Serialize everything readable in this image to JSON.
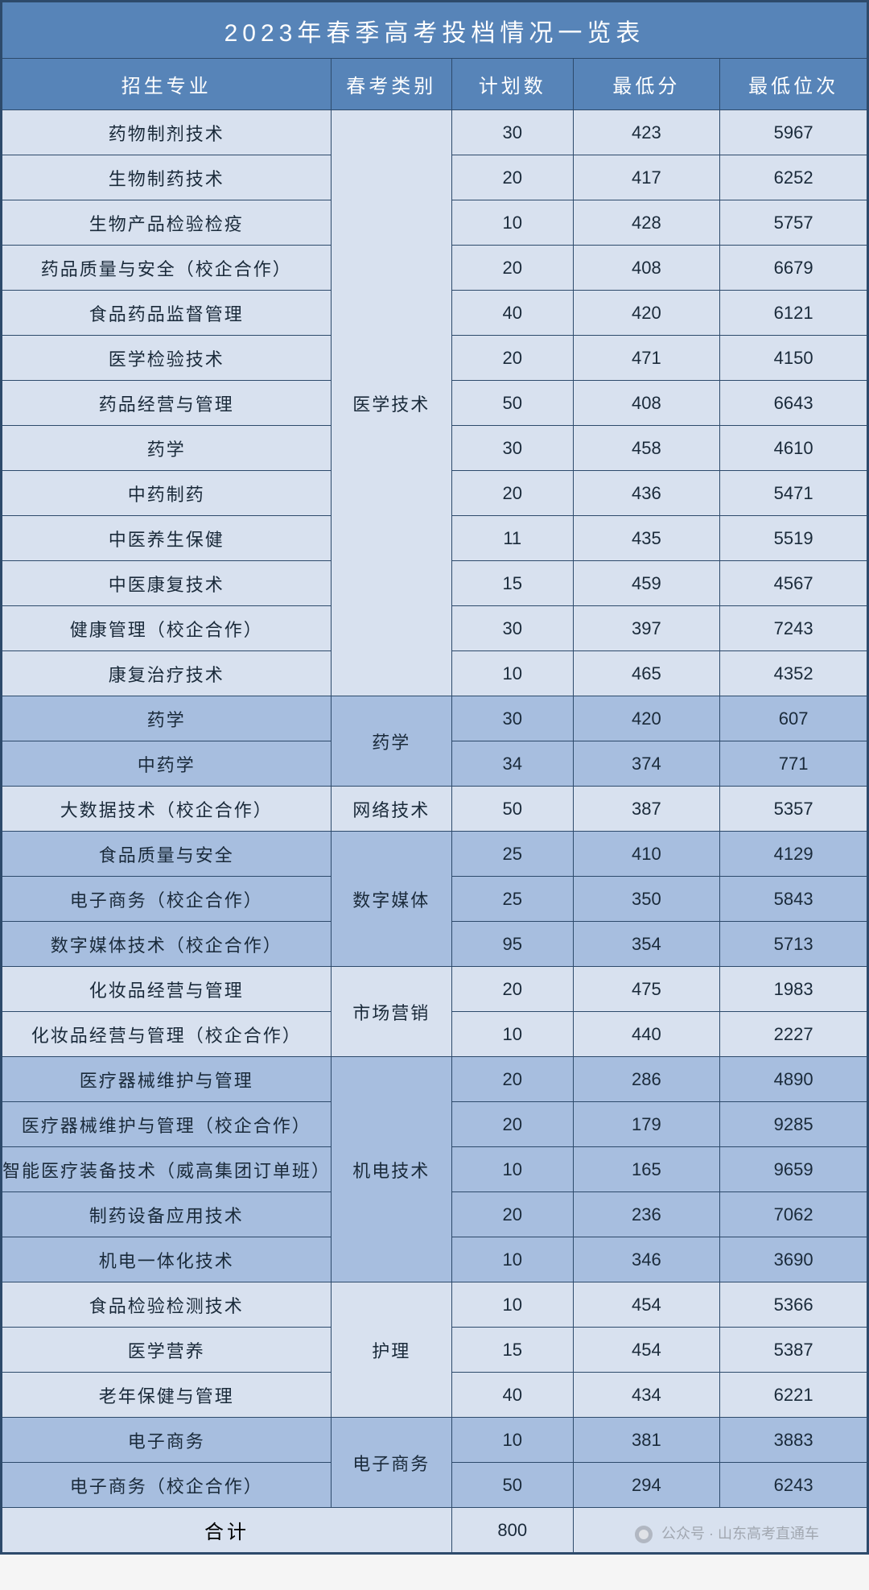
{
  "title": "2023年春季高考投档情况一览表",
  "columns": [
    "招生专业",
    "春考类别",
    "计划数",
    "最低分",
    "最低位次"
  ],
  "col_widths_pct": [
    38,
    14,
    14,
    17,
    17
  ],
  "totals_label": "合计",
  "totals_value": "800",
  "watermark": "公众号 · 山东高考直通车",
  "colors": {
    "header_bg": "#5784b8",
    "header_text": "#ffffff",
    "border": "#2d4a6b",
    "band_light": "#d8e1ef",
    "band_dark": "#a7bedf",
    "cell_text": "#1a2a3a"
  },
  "groups": [
    {
      "category": "医学技术",
      "bg": "#d8e1ef",
      "rows": [
        {
          "major": "药物制剂技术",
          "plan": "30",
          "score": "423",
          "rank": "5967"
        },
        {
          "major": "生物制药技术",
          "plan": "20",
          "score": "417",
          "rank": "6252"
        },
        {
          "major": "生物产品检验检疫",
          "plan": "10",
          "score": "428",
          "rank": "5757"
        },
        {
          "major": "药品质量与安全（校企合作）",
          "plan": "20",
          "score": "408",
          "rank": "6679"
        },
        {
          "major": "食品药品监督管理",
          "plan": "40",
          "score": "420",
          "rank": "6121"
        },
        {
          "major": "医学检验技术",
          "plan": "20",
          "score": "471",
          "rank": "4150"
        },
        {
          "major": "药品经营与管理",
          "plan": "50",
          "score": "408",
          "rank": "6643"
        },
        {
          "major": "药学",
          "plan": "30",
          "score": "458",
          "rank": "4610"
        },
        {
          "major": "中药制药",
          "plan": "20",
          "score": "436",
          "rank": "5471"
        },
        {
          "major": "中医养生保健",
          "plan": "11",
          "score": "435",
          "rank": "5519"
        },
        {
          "major": "中医康复技术",
          "plan": "15",
          "score": "459",
          "rank": "4567"
        },
        {
          "major": "健康管理（校企合作）",
          "plan": "30",
          "score": "397",
          "rank": "7243"
        },
        {
          "major": "康复治疗技术",
          "plan": "10",
          "score": "465",
          "rank": "4352"
        }
      ]
    },
    {
      "category": "药学",
      "bg": "#a7bedf",
      "rows": [
        {
          "major": "药学",
          "plan": "30",
          "score": "420",
          "rank": "607"
        },
        {
          "major": "中药学",
          "plan": "34",
          "score": "374",
          "rank": "771"
        }
      ]
    },
    {
      "category": "网络技术",
      "bg": "#d8e1ef",
      "rows": [
        {
          "major": "大数据技术（校企合作）",
          "plan": "50",
          "score": "387",
          "rank": "5357"
        }
      ]
    },
    {
      "category": "数字媒体",
      "bg": "#a7bedf",
      "rows": [
        {
          "major": "食品质量与安全",
          "plan": "25",
          "score": "410",
          "rank": "4129"
        },
        {
          "major": "电子商务（校企合作）",
          "plan": "25",
          "score": "350",
          "rank": "5843"
        },
        {
          "major": "数字媒体技术（校企合作）",
          "plan": "95",
          "score": "354",
          "rank": "5713"
        }
      ]
    },
    {
      "category": "市场营销",
      "bg": "#d8e1ef",
      "rows": [
        {
          "major": "化妆品经营与管理",
          "plan": "20",
          "score": "475",
          "rank": "1983"
        },
        {
          "major": "化妆品经营与管理（校企合作）",
          "plan": "10",
          "score": "440",
          "rank": "2227"
        }
      ]
    },
    {
      "category": "机电技术",
      "bg": "#a7bedf",
      "rows": [
        {
          "major": "医疗器械维护与管理",
          "plan": "20",
          "score": "286",
          "rank": "4890"
        },
        {
          "major": "医疗器械维护与管理（校企合作）",
          "plan": "20",
          "score": "179",
          "rank": "9285"
        },
        {
          "major": "智能医疗装备技术（威高集团订单班）",
          "plan": "10",
          "score": "165",
          "rank": "9659"
        },
        {
          "major": "制药设备应用技术",
          "plan": "20",
          "score": "236",
          "rank": "7062"
        },
        {
          "major": "机电一体化技术",
          "plan": "10",
          "score": "346",
          "rank": "3690"
        }
      ]
    },
    {
      "category": "护理",
      "bg": "#d8e1ef",
      "rows": [
        {
          "major": "食品检验检测技术",
          "plan": "10",
          "score": "454",
          "rank": "5366"
        },
        {
          "major": "医学营养",
          "plan": "15",
          "score": "454",
          "rank": "5387"
        },
        {
          "major": "老年保健与管理",
          "plan": "40",
          "score": "434",
          "rank": "6221"
        }
      ]
    },
    {
      "category": "电子商务",
      "bg": "#a7bedf",
      "rows": [
        {
          "major": "电子商务",
          "plan": "10",
          "score": "381",
          "rank": "3883"
        },
        {
          "major": "电子商务（校企合作）",
          "plan": "50",
          "score": "294",
          "rank": "6243"
        }
      ]
    }
  ],
  "totals_bg": "#d8e1ef"
}
